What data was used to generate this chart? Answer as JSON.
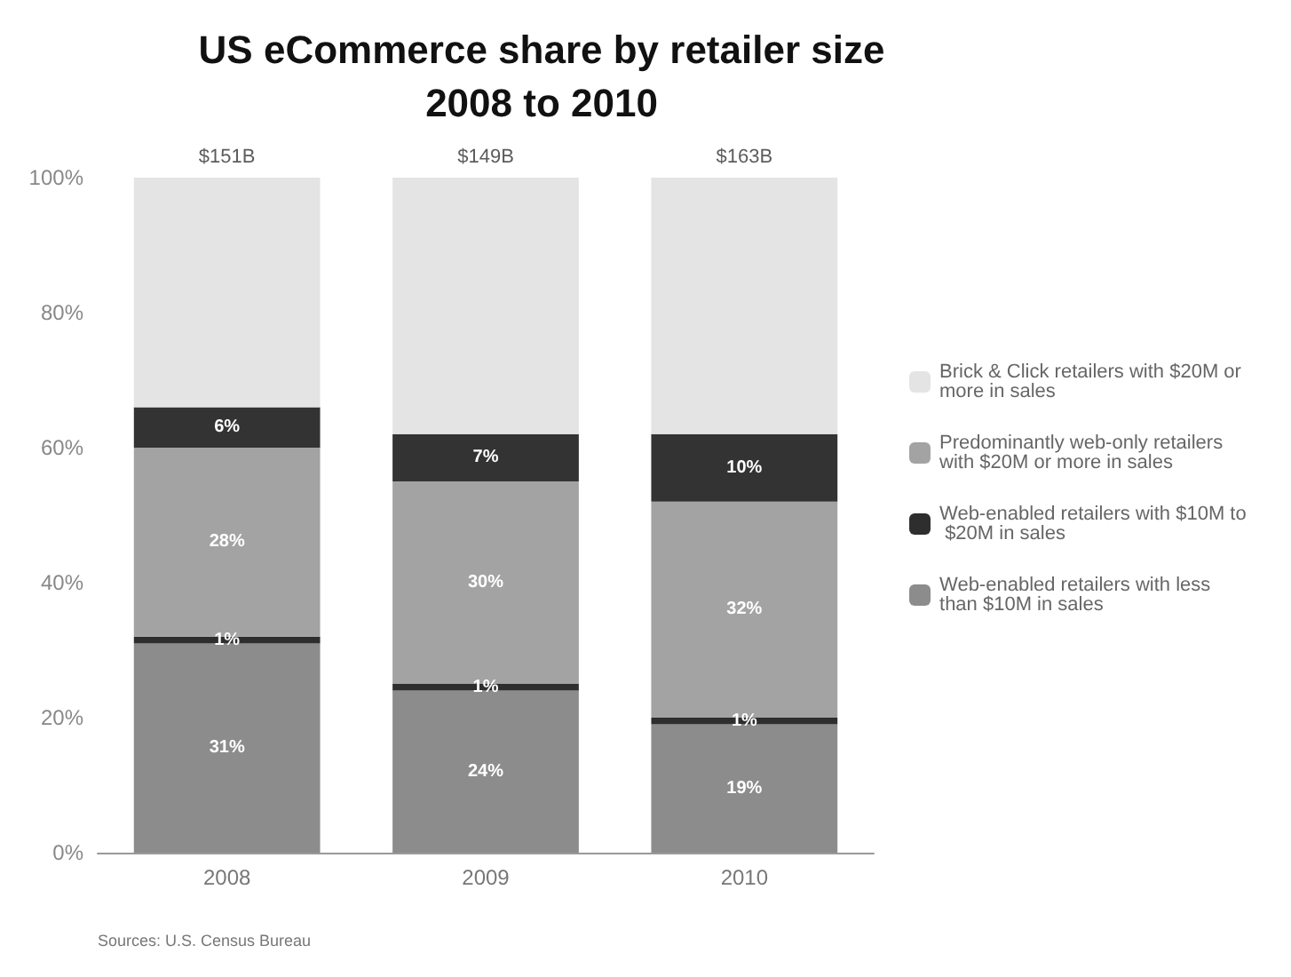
{
  "chart_data": {
    "type": "bar",
    "stacked": true,
    "title": "US eCommerce share by retailer size\n2008 to 2010",
    "categories": [
      "2008",
      "2009",
      "2010"
    ],
    "series": [
      {
        "name": "Web-enabled retailers with less than $10M in sales",
        "color": "#8c8c8c",
        "values": [
          31,
          24,
          19
        ],
        "value_labels": [
          "31%",
          "24%",
          "19%"
        ]
      },
      {
        "name": "Web-enabled retailers with $10M to $20M in sales",
        "color": "#2e2e2e",
        "values": [
          1,
          1,
          1
        ],
        "value_labels": [
          "1%",
          "1%",
          "1%"
        ]
      },
      {
        "name": "Predominantly web-only retailers with $20M or more in sales",
        "color": "#a3a3a3",
        "values": [
          28,
          30,
          32
        ],
        "value_labels": [
          "28%",
          "30%",
          "32%"
        ]
      },
      {
        "color": "#333333",
        "values": [
          6,
          7,
          10
        ],
        "value_labels": [
          "6%",
          "7%",
          "10%"
        ]
      },
      {
        "name": "Brick & Click retailers with $20M or more in sales",
        "color": "#e4e4e4",
        "values": [
          34,
          38,
          38
        ]
      }
    ],
    "ylim": [
      0,
      100
    ],
    "yticks": [
      {
        "value": 0,
        "label": "0%"
      },
      {
        "value": 20,
        "label": "20%"
      },
      {
        "value": 40,
        "label": "40%"
      },
      {
        "value": 60,
        "label": "60%"
      },
      {
        "value": 80,
        "label": "80%"
      },
      {
        "value": 100,
        "label": "100%"
      }
    ],
    "grid": false,
    "legend": "right",
    "annotations": [
      {
        "text": "$151B",
        "x": "2008",
        "y": 100
      },
      {
        "text": "$149B",
        "x": "2009",
        "y": 100
      },
      {
        "text": "$163B",
        "x": "2010",
        "y": 100
      },
      "Sources: U.S. Census Bureau"
    ]
  }
}
